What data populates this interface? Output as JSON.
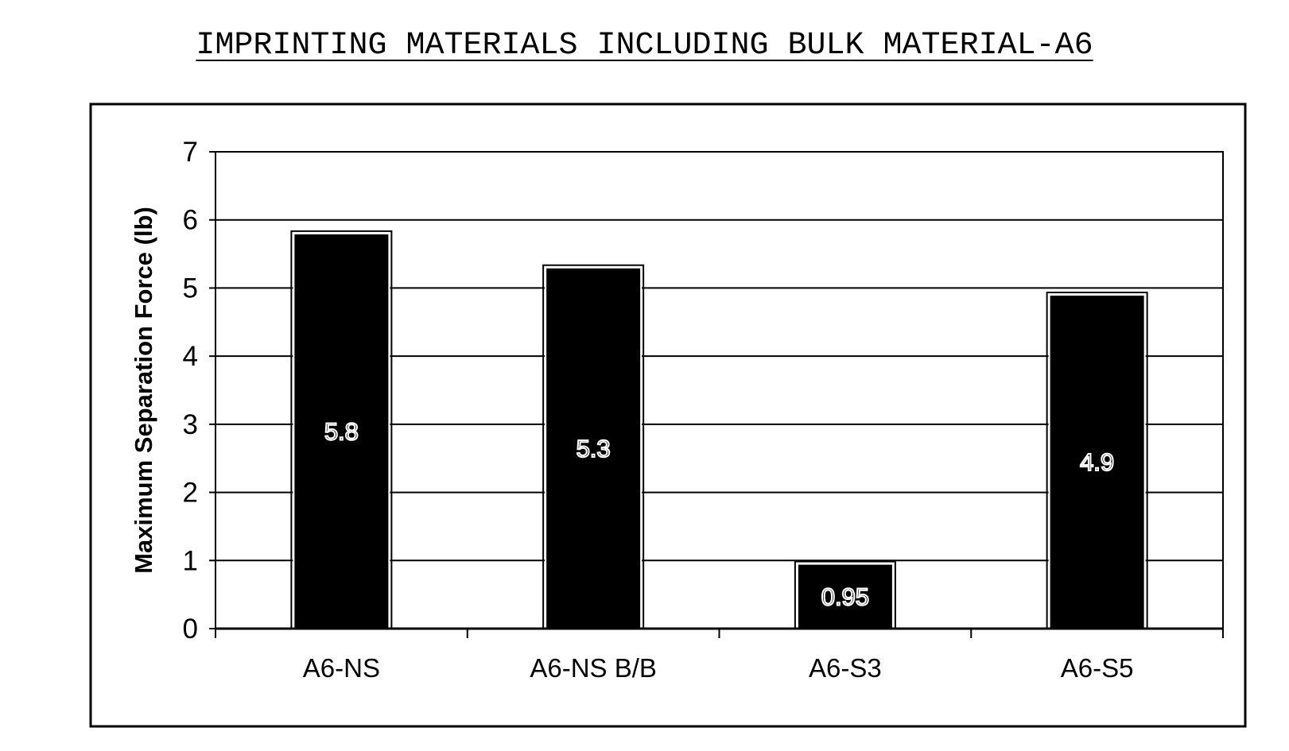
{
  "chart_data": {
    "type": "bar",
    "title": "IMPRINTING MATERIALS INCLUDING BULK MATERIAL-A6",
    "xlabel": "",
    "ylabel": "Maximum Separation Force (lb)",
    "categories": [
      "A6-NS",
      "A6-NS B/B",
      "A6-S3",
      "A6-S5"
    ],
    "values": [
      5.8,
      5.3,
      0.95,
      4.9
    ],
    "data_labels": [
      "5.8",
      "5.3",
      "0.95",
      "4.9"
    ],
    "ylim": [
      0,
      7
    ],
    "yticks": [
      0,
      1,
      2,
      3,
      4,
      5,
      6,
      7
    ],
    "grid": true,
    "legend": "none",
    "bar_color": "#000000"
  }
}
